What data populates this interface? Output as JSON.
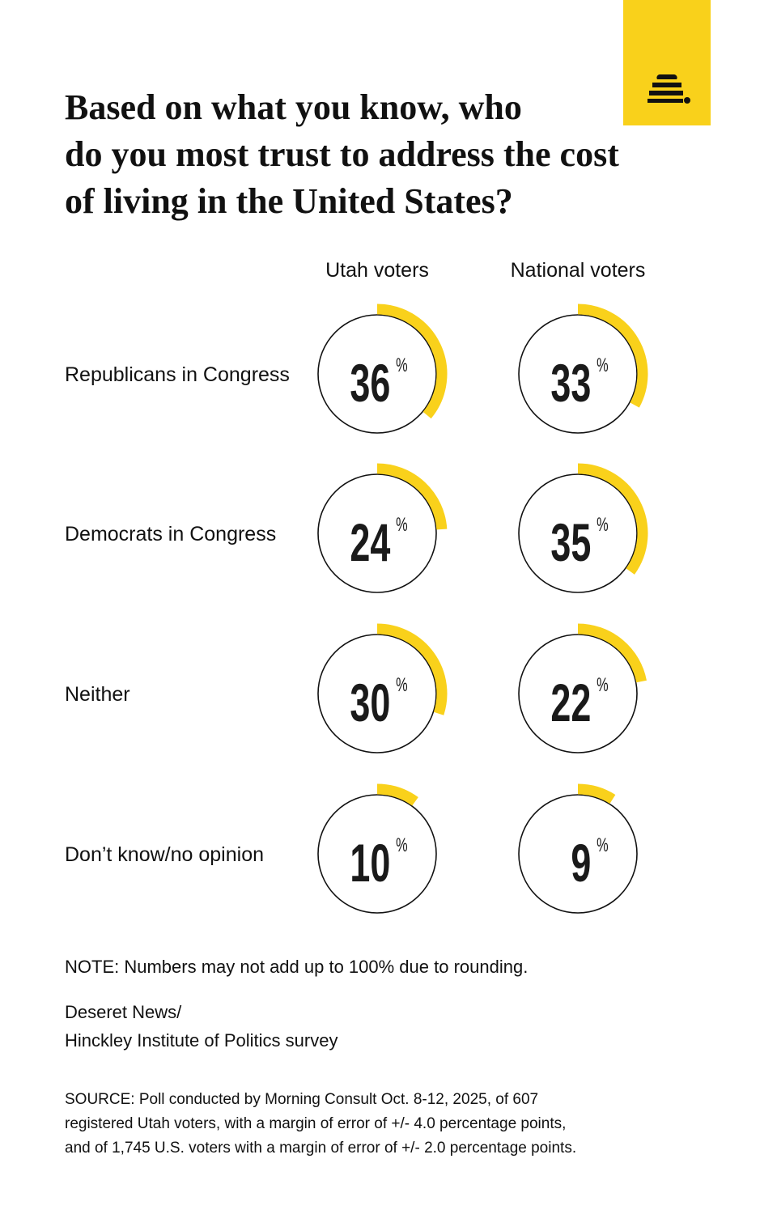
{
  "chart_data": {
    "type": "donut-grid",
    "title": [
      "Based on what you know, who",
      "do you most trust to address the cost",
      "of living in the United States?"
    ],
    "categories": [
      "Republicans in Congress",
      "Democrats in Congress",
      "Neither",
      "Don’t know/no opinion"
    ],
    "series": [
      {
        "name": "Utah voters",
        "color": "#f9d11b",
        "values": [
          36,
          24,
          30,
          10
        ]
      },
      {
        "name": "National voters",
        "color": "#f9d11b",
        "values": [
          33,
          35,
          22,
          9
        ]
      }
    ],
    "unit": "%"
  },
  "footer": {
    "note": "NOTE: Numbers may not add up to 100% due to rounding.",
    "credit": [
      "Deseret News/",
      "Hinckley Institute of Politics survey"
    ],
    "source": [
      "SOURCE: Poll conducted by Morning Consult Oct. 8-12, 2025, of 607",
      "registered Utah voters, with a margin of error of +/- 4.0 percentage points,",
      "and of 1,745 U.S. voters with a margin of error of +/- 2.0 percentage points."
    ]
  }
}
